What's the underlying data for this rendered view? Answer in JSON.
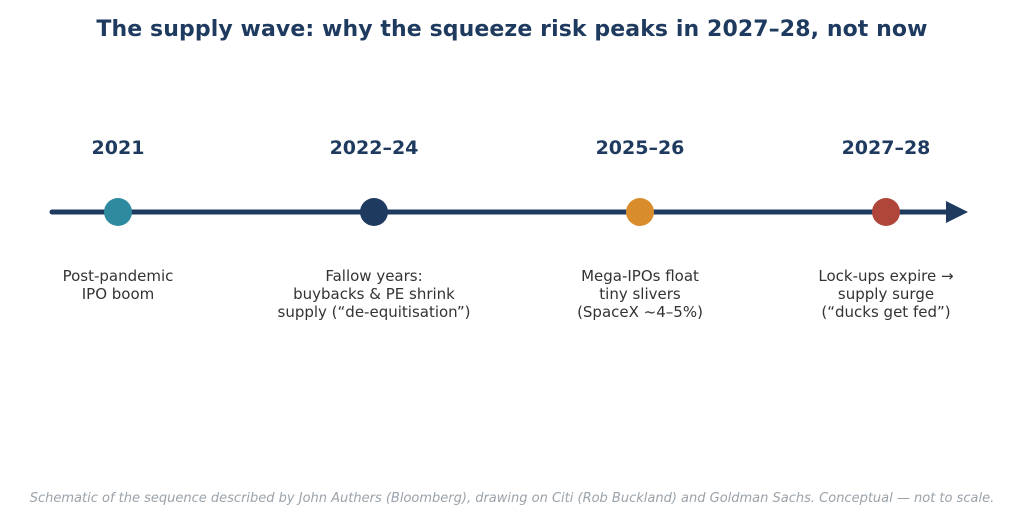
{
  "title": "The supply wave: why the squeeze risk peaks in 2027–28, not now",
  "colors": {
    "axis": "#1e3a5f",
    "teal": "#2e8a9e",
    "navy": "#1e3a5f",
    "orange": "#d98c2b",
    "red": "#b0453a"
  },
  "milestones": [
    {
      "year": "2021",
      "color": "#2e8a9e",
      "lines": [
        "Post-pandemic",
        "IPO boom"
      ]
    },
    {
      "year": "2022–24",
      "color": "#1e3a5f",
      "lines": [
        "Fallow years:",
        "buybacks & PE shrink",
        "supply (“de-equitisation”)"
      ]
    },
    {
      "year": "2025–26",
      "color": "#d98c2b",
      "lines": [
        "Mega-IPOs float",
        "tiny slivers",
        "(SpaceX ~4–5%)"
      ]
    },
    {
      "year": "2027–28",
      "color": "#b0453a",
      "lines": [
        "Lock-ups expire →",
        "supply surge",
        "(“ducks get fed”)"
      ]
    }
  ],
  "footnote": "Schematic of the sequence described by John Authers (Bloomberg), drawing on Citi (Rob Buckland) and Goldman Sachs. Conceptual — not to scale.",
  "icons": {
    "arrow": "arrowhead-icon",
    "marker": "circle"
  }
}
